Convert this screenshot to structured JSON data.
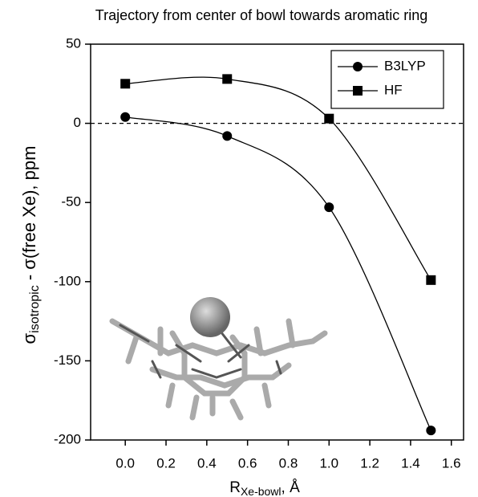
{
  "chart_data": {
    "type": "line",
    "title": "Trajectory from center of bowl towards aromatic ring",
    "x_label": {
      "main": "R",
      "sub": "Xe-bowl",
      "rest": ", Å"
    },
    "y_label": {
      "main": "σ",
      "sub": "isotropic",
      "rest": " - σ(free Xe), ppm"
    },
    "x": [
      0.0,
      0.5,
      1.0,
      1.5
    ],
    "series": [
      {
        "name": "B3LYP",
        "color": "#000000",
        "marker": "circle",
        "values": [
          4,
          -8,
          -53,
          -194
        ]
      },
      {
        "name": "HF",
        "color": "#000000",
        "marker": "square",
        "values": [
          25,
          28,
          3,
          -99
        ]
      }
    ],
    "xlim": [
      -0.17,
      1.66
    ],
    "ylim": [
      -200,
      50
    ],
    "xticks": [
      {
        "value": 0,
        "label": "0.0"
      },
      {
        "value": 0.2,
        "label": "0.2"
      },
      {
        "value": 0.4,
        "label": "0.4"
      },
      {
        "value": 0.6,
        "label": "0.6"
      },
      {
        "value": 0.8,
        "label": "0.8"
      },
      {
        "value": 1,
        "label": "1.0"
      },
      {
        "value": 1.2,
        "label": "1.2"
      },
      {
        "value": 1.4,
        "label": "1.4"
      },
      {
        "value": 1.6,
        "label": "1.6"
      }
    ],
    "yticks": [
      -200,
      -150,
      -100,
      -50,
      0,
      50
    ],
    "reference_line": 0,
    "legend": "upper right"
  }
}
